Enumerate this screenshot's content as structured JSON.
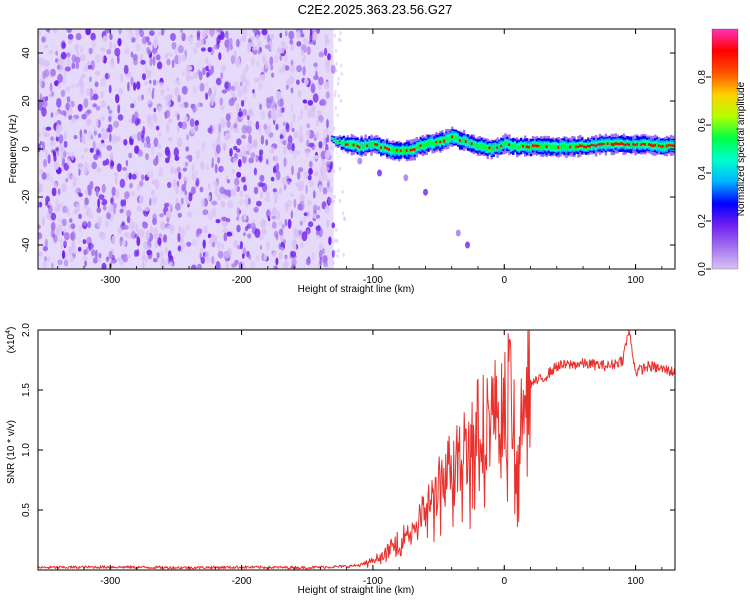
{
  "figure_title": "C2E2.2025.363.23.56.G27",
  "colors": {
    "snr_line": "#e8302c",
    "axis": "#000000",
    "grid": "#ffffff",
    "colormap": [
      "#d9c2f5",
      "#a372ee",
      "#7020f0",
      "#0000ff",
      "#00b4ff",
      "#00ffcc",
      "#00ff44",
      "#b4ff00",
      "#ffd000",
      "#ff5000",
      "#ff0000",
      "#ff33bb"
    ]
  },
  "chart_data": [
    {
      "type": "heatmap",
      "title": "C2E2.2025.363.23.56.G27",
      "xlabel": "Height of straight line (km)",
      "ylabel": "Frequency (Hz)",
      "xlim": [
        -355,
        130
      ],
      "ylim": [
        -50,
        50
      ],
      "xticks": [
        -300,
        -200,
        -100,
        0,
        100
      ],
      "yticks": [
        -40,
        -20,
        0,
        20,
        40
      ],
      "noise_region_x": [
        -355,
        -130
      ],
      "signal_track": {
        "x": [
          -132,
          -120,
          -110,
          -100,
          -90,
          -80,
          -70,
          -60,
          -50,
          -40,
          -30,
          -20,
          -10,
          0,
          10,
          20,
          40,
          60,
          80,
          100,
          130
        ],
        "freq": [
          4,
          2,
          1,
          2,
          0,
          -1,
          0,
          2,
          3,
          5,
          3,
          1,
          0,
          2,
          1,
          1,
          1,
          1,
          2,
          2,
          1
        ]
      },
      "faint_streak": {
        "x": [
          -110,
          -95,
          -75,
          -60,
          -35,
          -28
        ],
        "freq": [
          -5,
          -10,
          -12,
          -18,
          -35,
          -40
        ]
      },
      "colorbar": {
        "label": "Normalized spectral amplitude",
        "range": [
          0.0,
          1.0
        ],
        "ticks": [
          0.0,
          0.2,
          0.4,
          0.6,
          0.8
        ],
        "tick_labels": [
          "0.0",
          "0.2",
          "0.4",
          "0.6",
          "0.8"
        ]
      }
    },
    {
      "type": "line",
      "title": "",
      "xlabel": "Height of straight line (km)",
      "ylabel": "SNR (10 * v/v)",
      "scale_label": "(x10",
      "scale_exponent": "4",
      "scale_close": ")",
      "xlim": [
        -355,
        130
      ],
      "ylim": [
        0,
        20000
      ],
      "xticks": [
        -300,
        -200,
        -100,
        0,
        100
      ],
      "yticks": [
        5000,
        10000,
        15000,
        20000
      ],
      "ytick_labels": [
        "0.5",
        "1.0",
        "1.5",
        "2.0"
      ],
      "series": [
        {
          "name": "SNR",
          "x": [
            -355,
            -300,
            -250,
            -200,
            -150,
            -120,
            -110,
            -100,
            -90,
            -80,
            -70,
            -60,
            -50,
            -40,
            -30,
            -20,
            -10,
            0,
            5,
            10,
            15,
            20,
            30,
            40,
            60,
            80,
            90,
            95,
            100,
            110,
            130
          ],
          "y": [
            200,
            250,
            200,
            230,
            200,
            300,
            400,
            800,
            1500,
            2500,
            3500,
            5000,
            7000,
            9000,
            10500,
            12000,
            13000,
            14000,
            15500,
            8000,
            16500,
            15500,
            16000,
            17000,
            17200,
            17000,
            17500,
            20000,
            16500,
            17000,
            16500
          ]
        }
      ]
    }
  ]
}
